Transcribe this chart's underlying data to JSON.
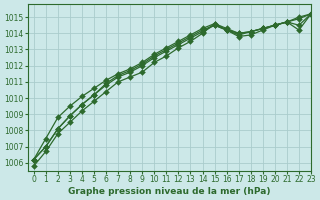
{
  "title": "Graphe pression niveau de la mer (hPa)",
  "bg_color": "#cce8e8",
  "grid_color": "#aacccc",
  "line_color": "#2d6a2d",
  "marker_color": "#2d6a2d",
  "xlim": [
    -0.5,
    23
  ],
  "ylim": [
    1005.5,
    1015.8
  ],
  "yticks": [
    1006,
    1007,
    1008,
    1009,
    1010,
    1011,
    1012,
    1013,
    1014,
    1015
  ],
  "xticks": [
    0,
    1,
    2,
    3,
    4,
    5,
    6,
    7,
    8,
    9,
    10,
    11,
    12,
    13,
    14,
    15,
    16,
    17,
    18,
    19,
    20,
    21,
    22,
    23
  ],
  "series": [
    [
      1005.8,
      1006.7,
      1007.8,
      1008.5,
      1009.2,
      1009.8,
      1010.4,
      1011.0,
      1011.3,
      1011.6,
      1012.2,
      1012.6,
      1013.1,
      1013.5,
      1014.0,
      1014.6,
      1014.2,
      1013.8,
      1013.9,
      1014.2,
      1014.5,
      1014.7,
      1015.0,
      1015.2
    ],
    [
      1006.2,
      1007.0,
      1008.1,
      1008.9,
      1009.6,
      1010.2,
      1010.8,
      1011.3,
      1011.6,
      1012.0,
      1012.5,
      1012.9,
      1013.3,
      1013.7,
      1014.1,
      1014.5,
      1014.2,
      1013.9,
      1014.1,
      1014.3,
      1014.5,
      1014.7,
      1014.5,
      1015.2
    ],
    [
      1006.2,
      1007.0,
      1008.1,
      1008.9,
      1009.6,
      1010.2,
      1010.9,
      1011.4,
      1011.7,
      1012.1,
      1012.6,
      1013.0,
      1013.4,
      1013.8,
      1014.2,
      1014.5,
      1014.2,
      1014.0,
      1014.1,
      1014.3,
      1014.5,
      1014.7,
      1014.9,
      1015.2
    ],
    [
      1006.2,
      1007.5,
      1008.8,
      1009.5,
      1010.1,
      1010.6,
      1011.1,
      1011.5,
      1011.8,
      1012.2,
      1012.7,
      1013.1,
      1013.5,
      1013.9,
      1014.3,
      1014.6,
      1014.3,
      1014.0,
      1014.1,
      1014.3,
      1014.5,
      1014.7,
      1014.2,
      1015.2
    ]
  ],
  "tick_fontsize": 5.5,
  "xlabel_fontsize": 6.5,
  "marker_size": 3,
  "line_width": 0.9
}
